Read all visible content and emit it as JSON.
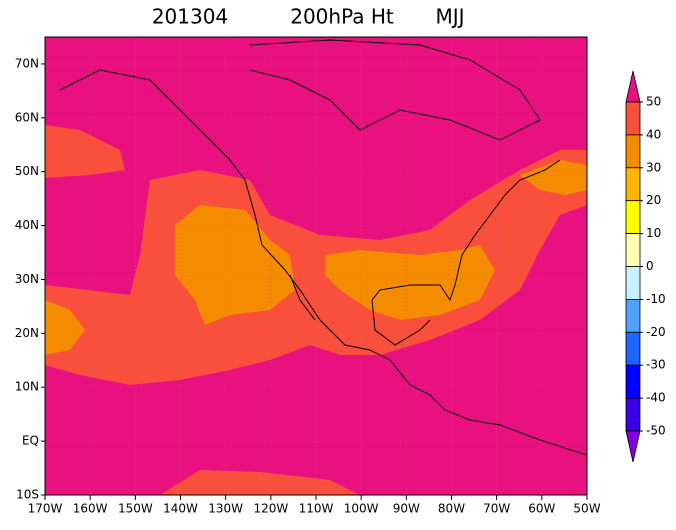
{
  "title": {
    "date": "201304",
    "field": "200hPa Ht",
    "season": "MJJ"
  },
  "lon_labels": [
    "170W",
    "160W",
    "150W",
    "140W",
    "130W",
    "120W",
    "110W",
    "100W",
    "90W",
    "80W",
    "70W",
    "60W",
    "50W"
  ],
  "lat_labels": [
    "70N",
    "60N",
    "50N",
    "40N",
    "30N",
    "20N",
    "10N",
    "EQ",
    "10S"
  ],
  "colorbar": {
    "levels": [
      50,
      40,
      30,
      20,
      10,
      0,
      -10,
      -20,
      -30,
      -40,
      -50
    ],
    "colors": [
      "#e8117f",
      "#f8503c",
      "#f58c00",
      "#ffb400",
      "#ffff00",
      "#ffffb4",
      "#c8f0ff",
      "#50a0ff",
      "#1e64ff",
      "#0000ff",
      "#3c00e6",
      "#8200dc"
    ]
  }
}
